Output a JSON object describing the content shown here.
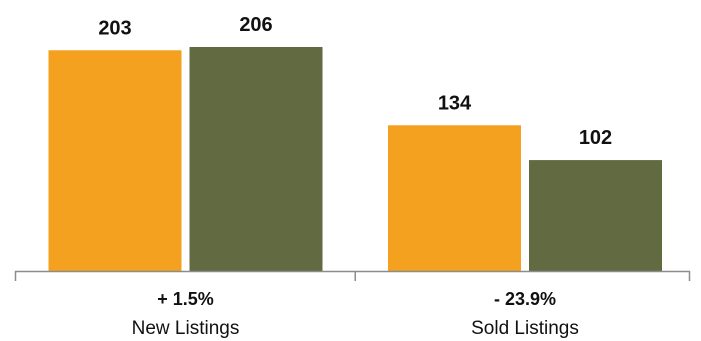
{
  "chart_data": {
    "type": "bar",
    "categories": [
      "New Listings",
      "Sold Listings"
    ],
    "change_labels": [
      "+ 1.5%",
      "- 23.9%"
    ],
    "series": [
      {
        "values": [
          203,
          134
        ],
        "color": "#F4A11F"
      },
      {
        "values": [
          206,
          102
        ],
        "color": "#616A41"
      }
    ],
    "data_labels": [
      [
        "203",
        "134"
      ],
      [
        "206",
        "102"
      ]
    ],
    "ylim": [
      0,
      230
    ],
    "legend": "none",
    "grid": false,
    "axis_color": "#8C8C8C"
  }
}
